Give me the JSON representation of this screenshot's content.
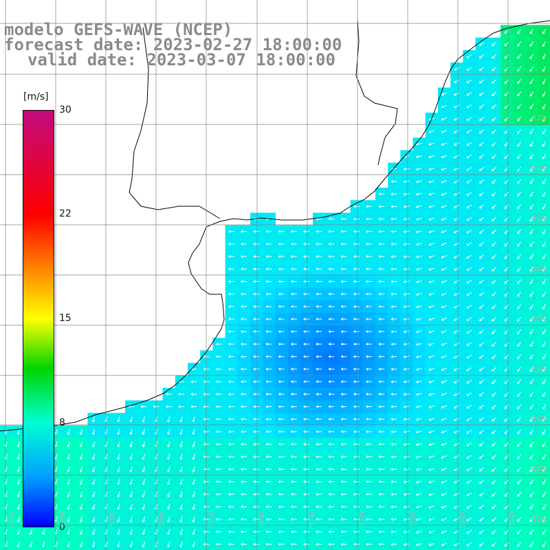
{
  "title": {
    "model": "modelo GEFS-WAVE (NCEP)",
    "forecast": "forecast date: 2023-02-27 18:00:00",
    "valid": "valid date: 2023-03-07 18:00:00"
  },
  "colorbar": {
    "units": "[m/s]",
    "ticks": [
      "30",
      "22",
      "15",
      "8",
      "0"
    ],
    "colors": [
      "#c20a7e",
      "#ff0000",
      "#ff7a00",
      "#ffff00",
      "#00d400",
      "#00ffd5",
      "#00a0ff",
      "#0000ff"
    ]
  },
  "lat_labels": [
    "33S",
    "34S",
    "35S",
    "36S",
    "37S",
    "38S",
    "39S",
    "40S",
    "41S"
  ],
  "lon_labels": [
    "61W",
    "60W",
    "59W",
    "58W",
    "57W",
    "56W",
    "55W",
    "54W",
    "53W",
    "52W",
    "51W"
  ],
  "colors": {
    "land": "#ffffff",
    "coast": "#000000",
    "grid": "#808080",
    "arrow": "#ffffff"
  }
}
